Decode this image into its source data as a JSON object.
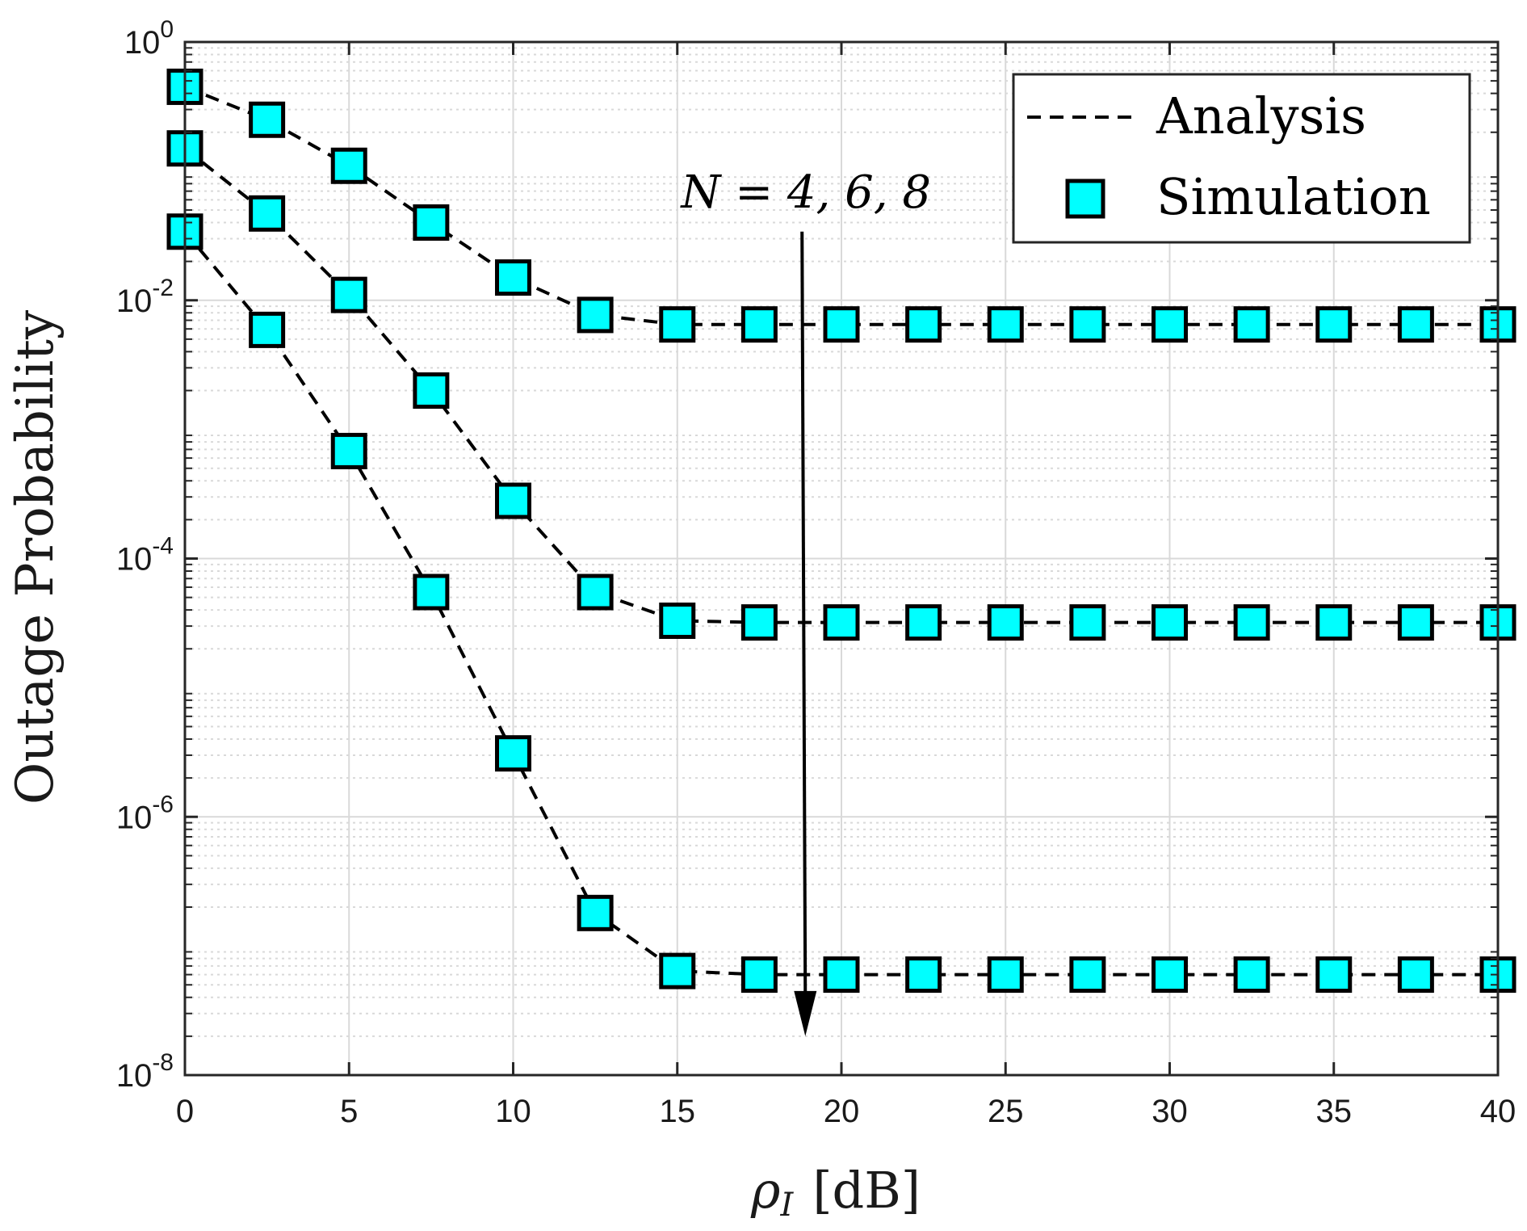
{
  "chart_data": {
    "type": "line",
    "title": "",
    "xlabel": "ρI [dB]",
    "xlabel_main": "ρ",
    "xlabel_sub": "I",
    "xlabel_unit": "[dB]",
    "ylabel": "Outage Probability",
    "xlim": [
      0,
      40
    ],
    "ylim": [
      1e-08,
      1
    ],
    "yscale": "log",
    "grid": true,
    "legend_position": "top-right",
    "x": [
      0,
      2.5,
      5,
      7.5,
      10,
      12.5,
      15,
      17.5,
      20,
      22.5,
      25,
      27.5,
      30,
      32.5,
      35,
      37.5,
      40
    ],
    "x_ticks": [
      0,
      5,
      10,
      15,
      20,
      25,
      30,
      35,
      40
    ],
    "x_tick_labels": [
      "0",
      "5",
      "10",
      "15",
      "20",
      "25",
      "30",
      "35",
      "40"
    ],
    "y_ticks": [
      {
        "value": 1,
        "base": "10",
        "exp": "0"
      },
      {
        "value": 0.01,
        "base": "10",
        "exp": "-2"
      },
      {
        "value": 0.0001,
        "base": "10",
        "exp": "-4"
      },
      {
        "value": 1e-06,
        "base": "10",
        "exp": "-6"
      },
      {
        "value": 1e-08,
        "base": "10",
        "exp": "-8"
      }
    ],
    "legend": {
      "analysis": "Analysis",
      "simulation": "Simulation"
    },
    "series": [
      {
        "name": "N = 4",
        "values": [
          0.45,
          0.25,
          0.11,
          0.04,
          0.015,
          0.0077,
          0.0065,
          0.0065,
          0.0065,
          0.0065,
          0.0065,
          0.0065,
          0.0065,
          0.0065,
          0.0065,
          0.0065,
          0.0065
        ]
      },
      {
        "name": "N = 6",
        "values": [
          0.15,
          0.047,
          0.011,
          0.002,
          0.00028,
          5.5e-05,
          3.3e-05,
          3.2e-05,
          3.2e-05,
          3.2e-05,
          3.2e-05,
          3.2e-05,
          3.2e-05,
          3.2e-05,
          3.2e-05,
          3.2e-05,
          3.2e-05
        ]
      },
      {
        "name": "N = 8",
        "values": [
          0.034,
          0.0059,
          0.00068,
          5.5e-05,
          3.1e-06,
          1.8e-07,
          6.4e-08,
          6e-08,
          6e-08,
          6e-08,
          6e-08,
          6e-08,
          6e-08,
          6e-08,
          6e-08,
          6e-08,
          6e-08
        ]
      }
    ],
    "annotation": {
      "text": "N = 4, 6, 8",
      "arrow_from": {
        "x": 18.8,
        "y": 0.034
      },
      "arrow_to": {
        "x": 18.9,
        "y": 2e-08
      }
    },
    "colors": {
      "marker_fill": "#00FFFF",
      "marker_edge": "#000000",
      "line": "#000000",
      "grid": "#d9d9d9"
    }
  }
}
